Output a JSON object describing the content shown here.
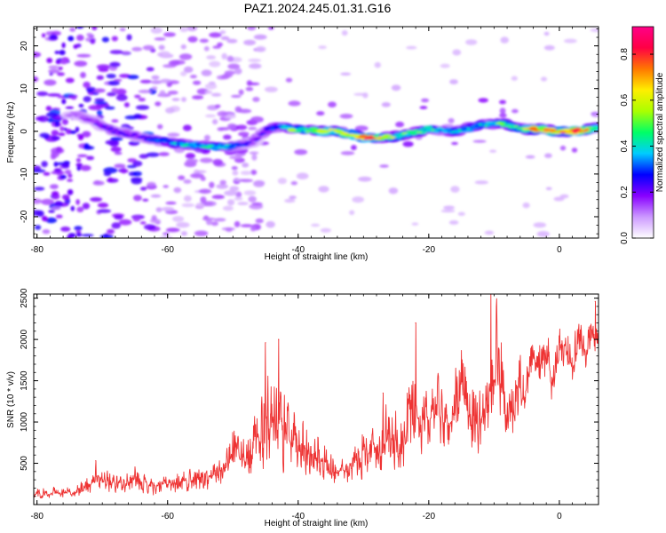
{
  "title": "PAZ1.2024.245.01.31.G16",
  "chart_data": [
    {
      "type": "heatmap",
      "title": "PAZ1.2024.245.01.31.G16",
      "xlabel": "Height of straight line (km)",
      "ylabel": "Frequency (Hz)",
      "xlim": [
        -80.5,
        6
      ],
      "ylim": [
        -25,
        24.5
      ],
      "x_ticks": [
        "-80",
        "-60",
        "-40",
        "-20",
        "0"
      ],
      "y_ticks": [
        "20",
        "10",
        "0",
        "-10",
        "-20"
      ],
      "colorbar": {
        "label": "Normalized spectral amplitude",
        "range": [
          0,
          0.92
        ],
        "ticks": [
          "0.0",
          "0.2",
          "0.4",
          "0.6",
          "0.8"
        ],
        "colormap": [
          "#ffffff",
          "#cc99ff",
          "#8800ff",
          "#0000ff",
          "#00ccff",
          "#00ff66",
          "#aaff00",
          "#ffee00",
          "#ff7700",
          "#ff0044",
          "#ff0088"
        ]
      },
      "ridge": {
        "x": [
          -74,
          -71,
          -68,
          -65,
          -62,
          -58,
          -54,
          -50,
          -47,
          -45,
          -43,
          -40,
          -37,
          -34,
          -30,
          -27,
          -24,
          -20,
          -16,
          -12,
          -9,
          -6,
          -3,
          0,
          3,
          6
        ],
        "frequency": [
          4,
          2,
          0,
          -1,
          -2,
          -3,
          -3.5,
          -3.5,
          -2.5,
          0,
          1,
          0.5,
          0,
          0,
          -1.5,
          -1.5,
          -1,
          0.5,
          0,
          1.5,
          2,
          0.5,
          0.5,
          0,
          0,
          1
        ],
        "amplitude": [
          0.15,
          0.2,
          0.25,
          0.2,
          0.3,
          0.4,
          0.45,
          0.4,
          0.2,
          0.25,
          0.35,
          0.55,
          0.6,
          0.55,
          0.85,
          0.6,
          0.5,
          0.45,
          0.4,
          0.4,
          0.5,
          0.5,
          0.8,
          0.7,
          0.85,
          0.5
        ]
      }
    },
    {
      "type": "line",
      "xlabel": "Height of straight line (km)",
      "ylabel": "SNR (10 * v/v)",
      "xlim": [
        -80.5,
        6
      ],
      "ylim": [
        0,
        2550
      ],
      "x_ticks": [
        "-80",
        "-60",
        "-40",
        "-20",
        "0"
      ],
      "y_ticks": [
        "500",
        "1000",
        "1500",
        "2000",
        "2500"
      ],
      "color": "#ee3333",
      "envelope": {
        "x": [
          -80.5,
          -76,
          -73,
          -71,
          -68,
          -65,
          -62,
          -58,
          -55,
          -52,
          -50,
          -48,
          -46,
          -44.5,
          -43,
          -41,
          -38,
          -35,
          -32,
          -30,
          -28,
          -26,
          -24,
          -23,
          -21,
          -19,
          -17,
          -15,
          -13,
          -11,
          -10,
          -9,
          -7,
          -5,
          -4,
          -2,
          -1,
          0,
          1,
          2,
          3,
          4,
          5,
          6
        ],
        "mean": [
          120,
          130,
          170,
          300,
          250,
          280,
          230,
          250,
          300,
          380,
          600,
          500,
          800,
          1000,
          900,
          700,
          650,
          420,
          400,
          650,
          700,
          800,
          600,
          1100,
          1000,
          1100,
          950,
          1300,
          900,
          1200,
          1600,
          1300,
          1050,
          1400,
          1750,
          1700,
          1500,
          1800,
          1900,
          1650,
          1900,
          1850,
          2050,
          2000
        ],
        "spread": [
          80,
          70,
          100,
          180,
          150,
          180,
          140,
          160,
          180,
          220,
          350,
          300,
          550,
          800,
          700,
          480,
          400,
          250,
          200,
          400,
          450,
          500,
          380,
          600,
          450,
          550,
          550,
          600,
          500,
          500,
          900,
          700,
          550,
          600,
          400,
          450,
          400,
          350,
          300,
          300,
          350,
          300,
          350,
          150
        ]
      },
      "peaks": [
        {
          "x": -71,
          "y": 530
        },
        {
          "x": -45,
          "y": 1960
        },
        {
          "x": -43,
          "y": 2000
        },
        {
          "x": -27,
          "y": 1350
        },
        {
          "x": -22,
          "y": 2200
        },
        {
          "x": -10.5,
          "y": 2550
        },
        {
          "x": 5.5,
          "y": 2460
        }
      ]
    }
  ]
}
